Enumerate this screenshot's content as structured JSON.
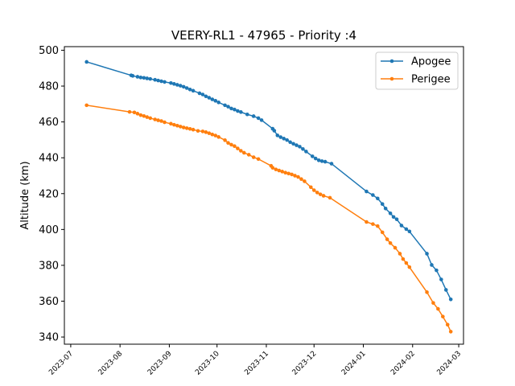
{
  "chart_data": {
    "type": "line",
    "title": "VEERY-RL1 - 47965 - Priority :4",
    "xlabel": "",
    "ylabel": "Altitude (km)",
    "ylim": [
      336,
      502
    ],
    "xlim": [
      "2023-06-27",
      "2024-03-04"
    ],
    "y_ticks": [
      340,
      360,
      380,
      400,
      420,
      440,
      460,
      480,
      500
    ],
    "x_ticks": [
      "2023-07",
      "2023-08",
      "2023-09",
      "2023-10",
      "2023-11",
      "2023-12",
      "2024-01",
      "2024-02",
      "2024-03"
    ],
    "x_tick_dates": [
      "2023-07-01",
      "2023-08-01",
      "2023-09-01",
      "2023-10-01",
      "2023-11-01",
      "2023-12-01",
      "2024-01-01",
      "2024-02-01",
      "2024-03-01"
    ],
    "grid": false,
    "legend_position": "top-right",
    "series": [
      {
        "name": "Apogee",
        "color": "#1f77b4",
        "points": [
          [
            "2023-07-11",
            493.5
          ],
          [
            "2023-08-08",
            486.0
          ],
          [
            "2023-08-09",
            485.7
          ],
          [
            "2023-08-12",
            485.2
          ],
          [
            "2023-08-14",
            484.8
          ],
          [
            "2023-08-16",
            484.6
          ],
          [
            "2023-08-18",
            484.3
          ],
          [
            "2023-08-20",
            484.0
          ],
          [
            "2023-08-23",
            483.5
          ],
          [
            "2023-08-25",
            483.1
          ],
          [
            "2023-08-27",
            482.7
          ],
          [
            "2023-08-29",
            482.3
          ],
          [
            "2023-09-02",
            481.7
          ],
          [
            "2023-09-04",
            481.2
          ],
          [
            "2023-09-06",
            480.7
          ],
          [
            "2023-09-08",
            480.2
          ],
          [
            "2023-09-10",
            479.6
          ],
          [
            "2023-09-12",
            478.9
          ],
          [
            "2023-09-14",
            478.1
          ],
          [
            "2023-09-16",
            477.4
          ],
          [
            "2023-09-20",
            476.0
          ],
          [
            "2023-09-22",
            475.3
          ],
          [
            "2023-09-24",
            474.3
          ],
          [
            "2023-09-26",
            473.5
          ],
          [
            "2023-09-28",
            472.6
          ],
          [
            "2023-09-30",
            471.8
          ],
          [
            "2023-10-02",
            470.9
          ],
          [
            "2023-10-06",
            469.3
          ],
          [
            "2023-10-08",
            468.5
          ],
          [
            "2023-10-10",
            467.5
          ],
          [
            "2023-10-12",
            466.9
          ],
          [
            "2023-10-14",
            466.1
          ],
          [
            "2023-10-16",
            465.5
          ],
          [
            "2023-10-20",
            464.2
          ],
          [
            "2023-10-24",
            463.2
          ],
          [
            "2023-10-27",
            462.1
          ],
          [
            "2023-10-29",
            461.0
          ],
          [
            "2023-11-05",
            456.2
          ],
          [
            "2023-11-06",
            455.1
          ],
          [
            "2023-11-08",
            452.5
          ],
          [
            "2023-11-10",
            451.5
          ],
          [
            "2023-11-12",
            450.7
          ],
          [
            "2023-11-14",
            449.9
          ],
          [
            "2023-11-16",
            448.7
          ],
          [
            "2023-11-18",
            447.8
          ],
          [
            "2023-11-20",
            447.0
          ],
          [
            "2023-11-22",
            446.2
          ],
          [
            "2023-11-24",
            444.9
          ],
          [
            "2023-11-26",
            443.5
          ],
          [
            "2023-11-30",
            440.8
          ],
          [
            "2023-12-02",
            439.6
          ],
          [
            "2023-12-04",
            438.6
          ],
          [
            "2023-12-06",
            438.1
          ],
          [
            "2023-12-08",
            437.8
          ],
          [
            "2023-12-12",
            436.7
          ],
          [
            "2024-01-03",
            421.2
          ],
          [
            "2024-01-07",
            419.2
          ],
          [
            "2024-01-10",
            417.3
          ],
          [
            "2024-01-13",
            414.2
          ],
          [
            "2024-01-15",
            411.7
          ],
          [
            "2024-01-18",
            409.0
          ],
          [
            "2024-01-20",
            407.0
          ],
          [
            "2024-01-22",
            405.7
          ],
          [
            "2024-01-25",
            402.2
          ],
          [
            "2024-01-28",
            400.2
          ],
          [
            "2024-01-30",
            398.9
          ],
          [
            "2024-02-10",
            386.5
          ],
          [
            "2024-02-13",
            380.2
          ],
          [
            "2024-02-16",
            377.2
          ],
          [
            "2024-02-19",
            372.1
          ],
          [
            "2024-02-22",
            366.3
          ],
          [
            "2024-02-25",
            361.0
          ]
        ]
      },
      {
        "name": "Perigee",
        "color": "#ff7f0e",
        "points": [
          [
            "2023-07-11",
            469.3
          ],
          [
            "2023-08-07",
            465.6
          ],
          [
            "2023-08-10",
            465.3
          ],
          [
            "2023-08-12",
            464.6
          ],
          [
            "2023-08-14",
            463.8
          ],
          [
            "2023-08-16",
            463.3
          ],
          [
            "2023-08-18",
            462.7
          ],
          [
            "2023-08-20",
            462.1
          ],
          [
            "2023-08-23",
            461.4
          ],
          [
            "2023-08-25",
            460.9
          ],
          [
            "2023-08-27",
            460.5
          ],
          [
            "2023-08-29",
            459.8
          ],
          [
            "2023-09-02",
            459.0
          ],
          [
            "2023-09-04",
            458.4
          ],
          [
            "2023-09-06",
            457.9
          ],
          [
            "2023-09-08",
            457.4
          ],
          [
            "2023-09-10",
            456.9
          ],
          [
            "2023-09-12",
            456.5
          ],
          [
            "2023-09-14",
            456.1
          ],
          [
            "2023-09-16",
            455.7
          ],
          [
            "2023-09-19",
            455.0
          ],
          [
            "2023-09-22",
            454.7
          ],
          [
            "2023-09-24",
            454.3
          ],
          [
            "2023-09-26",
            453.7
          ],
          [
            "2023-09-28",
            453.0
          ],
          [
            "2023-09-30",
            452.4
          ],
          [
            "2023-10-02",
            451.6
          ],
          [
            "2023-10-06",
            449.8
          ],
          [
            "2023-10-08",
            448.3
          ],
          [
            "2023-10-10",
            447.3
          ],
          [
            "2023-10-12",
            446.5
          ],
          [
            "2023-10-14",
            445.2
          ],
          [
            "2023-10-16",
            443.9
          ],
          [
            "2023-10-18",
            442.8
          ],
          [
            "2023-10-21",
            441.7
          ],
          [
            "2023-10-24",
            440.3
          ],
          [
            "2023-10-27",
            439.3
          ],
          [
            "2023-11-04",
            435.5
          ],
          [
            "2023-11-05",
            434.4
          ],
          [
            "2023-11-07",
            433.5
          ],
          [
            "2023-11-09",
            432.9
          ],
          [
            "2023-11-11",
            432.3
          ],
          [
            "2023-11-13",
            431.7
          ],
          [
            "2023-11-15",
            431.2
          ],
          [
            "2023-11-17",
            430.7
          ],
          [
            "2023-11-19",
            430.0
          ],
          [
            "2023-11-21",
            429.3
          ],
          [
            "2023-11-23",
            428.1
          ],
          [
            "2023-11-25",
            426.9
          ],
          [
            "2023-11-29",
            423.6
          ],
          [
            "2023-12-01",
            421.9
          ],
          [
            "2023-12-03",
            420.6
          ],
          [
            "2023-12-05",
            419.6
          ],
          [
            "2023-12-07",
            418.8
          ],
          [
            "2023-12-11",
            417.7
          ],
          [
            "2024-01-03",
            404.2
          ],
          [
            "2024-01-07",
            403.0
          ],
          [
            "2024-01-10",
            401.9
          ],
          [
            "2024-01-13",
            398.4
          ],
          [
            "2024-01-16",
            394.5
          ],
          [
            "2024-01-18",
            392.4
          ],
          [
            "2024-01-21",
            389.8
          ],
          [
            "2024-01-24",
            386.5
          ],
          [
            "2024-01-26",
            383.5
          ],
          [
            "2024-01-28",
            381.3
          ],
          [
            "2024-01-30",
            379.0
          ],
          [
            "2024-02-10",
            365.0
          ],
          [
            "2024-02-14",
            359.0
          ],
          [
            "2024-02-17",
            355.7
          ],
          [
            "2024-02-20",
            351.4
          ],
          [
            "2024-02-23",
            346.9
          ],
          [
            "2024-02-25",
            343.0
          ]
        ]
      }
    ]
  }
}
